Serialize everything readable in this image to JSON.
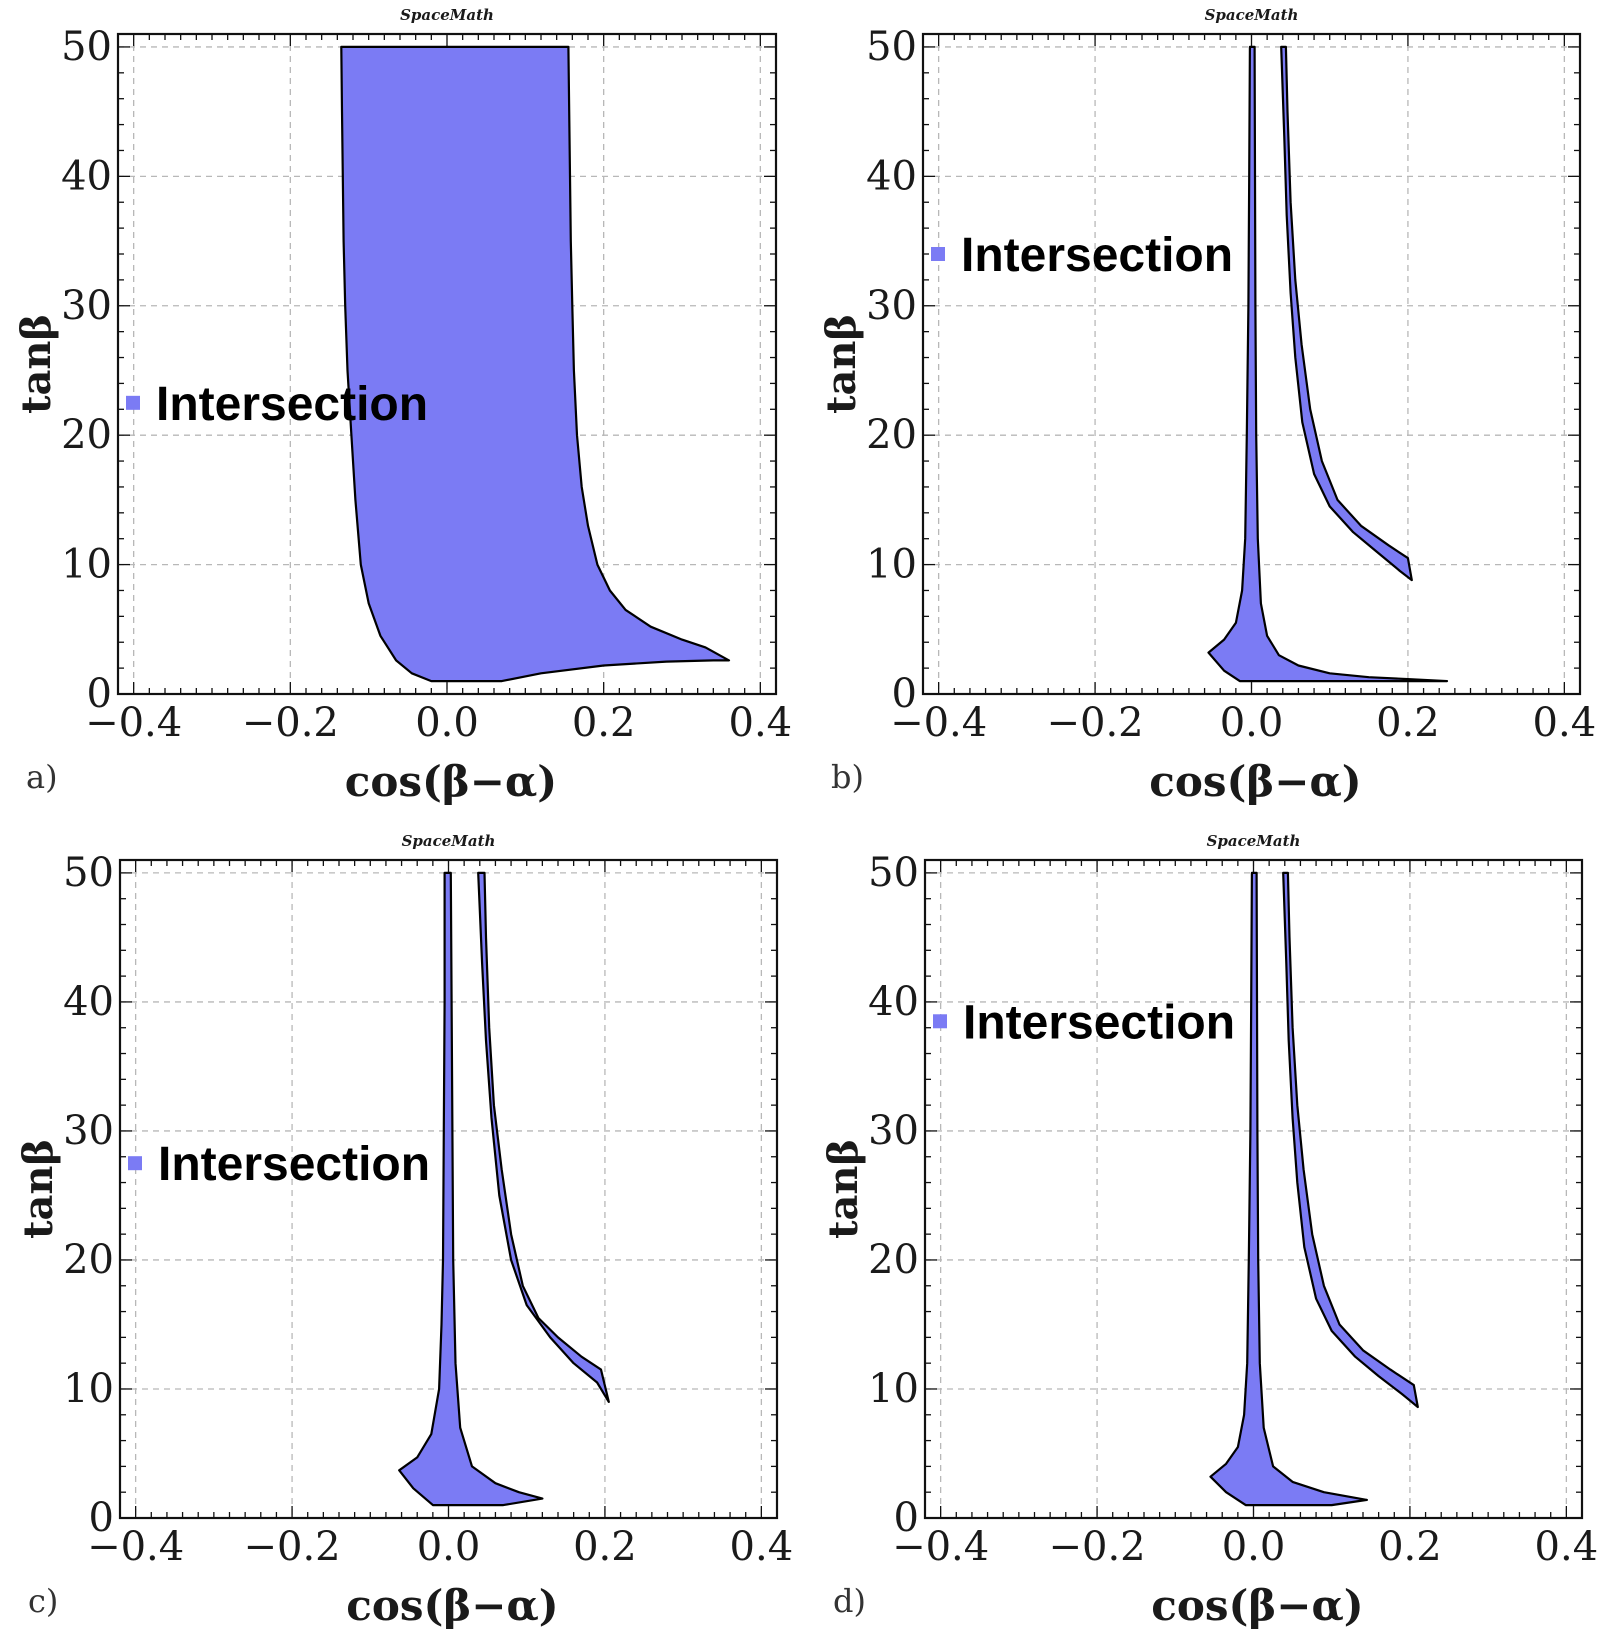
{
  "chart_data": [
    {
      "type": "area",
      "panel_label": "a)",
      "title": "SpaceMath",
      "xlabel": "cos(β−α)",
      "ylabel": "tanβ",
      "xlim": [
        -0.42,
        0.42
      ],
      "ylim": [
        0,
        51
      ],
      "xticks": [
        -0.4,
        -0.2,
        0.0,
        0.2,
        0.4
      ],
      "xtick_labels": [
        "−0.4",
        "−0.2",
        "0.0",
        "0.2",
        "0.4"
      ],
      "yticks": [
        0,
        10,
        20,
        30,
        40,
        50
      ],
      "ytick_labels": [
        "0",
        "10",
        "20",
        "30",
        "40",
        "50"
      ],
      "grid": true,
      "legend": {
        "label": "Intersection",
        "position": "left-middle",
        "y_value": 22.5
      },
      "color": "#7b7bf4",
      "series": [
        {
          "name": "Intersection",
          "polygons": [
            [
              [
                -0.135,
                50
              ],
              [
                0.155,
                50
              ],
              [
                0.156,
                45
              ],
              [
                0.157,
                40
              ],
              [
                0.158,
                35
              ],
              [
                0.16,
                30
              ],
              [
                0.162,
                25
              ],
              [
                0.166,
                20
              ],
              [
                0.172,
                16
              ],
              [
                0.18,
                13
              ],
              [
                0.192,
                10
              ],
              [
                0.208,
                8
              ],
              [
                0.228,
                6.5
              ],
              [
                0.26,
                5.2
              ],
              [
                0.3,
                4.2
              ],
              [
                0.33,
                3.6
              ],
              [
                0.36,
                2.6
              ],
              [
                0.34,
                2.6
              ],
              [
                0.28,
                2.5
              ],
              [
                0.2,
                2.2
              ],
              [
                0.12,
                1.6
              ],
              [
                0.07,
                1.0
              ],
              [
                -0.02,
                1.0
              ],
              [
                -0.045,
                1.6
              ],
              [
                -0.065,
                2.6
              ],
              [
                -0.085,
                4.5
              ],
              [
                -0.1,
                7
              ],
              [
                -0.11,
                10
              ],
              [
                -0.117,
                15
              ],
              [
                -0.122,
                20
              ],
              [
                -0.127,
                25
              ],
              [
                -0.13,
                30
              ],
              [
                -0.132,
                35
              ],
              [
                -0.133,
                40
              ],
              [
                -0.134,
                45
              ],
              [
                -0.135,
                50
              ]
            ]
          ]
        }
      ]
    },
    {
      "type": "area",
      "panel_label": "b)",
      "title": "SpaceMath",
      "xlabel": "cos(β−α)",
      "ylabel": "tanβ",
      "xlim": [
        -0.42,
        0.42
      ],
      "ylim": [
        0,
        51
      ],
      "xticks": [
        -0.4,
        -0.2,
        0.0,
        0.2,
        0.4
      ],
      "xtick_labels": [
        "−0.4",
        "−0.2",
        "0.0",
        "0.2",
        "0.4"
      ],
      "yticks": [
        0,
        10,
        20,
        30,
        40,
        50
      ],
      "ytick_labels": [
        "0",
        "10",
        "20",
        "30",
        "40",
        "50"
      ],
      "grid": true,
      "legend": {
        "label": "Intersection",
        "position": "upper-left",
        "y_value": 34
      },
      "color": "#7b7bf4",
      "series": [
        {
          "name": "Intersection",
          "polygons": [
            [
              [
                -0.002,
                50
              ],
              [
                0.004,
                50
              ],
              [
                0.0045,
                40
              ],
              [
                0.005,
                30
              ],
              [
                0.006,
                20
              ],
              [
                0.008,
                12
              ],
              [
                0.012,
                7
              ],
              [
                0.02,
                4.5
              ],
              [
                0.035,
                3
              ],
              [
                0.06,
                2.2
              ],
              [
                0.1,
                1.6
              ],
              [
                0.15,
                1.3
              ],
              [
                0.2,
                1.15
              ],
              [
                0.25,
                1.0
              ],
              [
                0.2,
                1.0
              ],
              [
                0.1,
                1.0
              ],
              [
                0.03,
                1.0
              ],
              [
                -0.015,
                1.0
              ],
              [
                -0.035,
                1.8
              ],
              [
                -0.055,
                3.2
              ],
              [
                -0.035,
                4.2
              ],
              [
                -0.02,
                5.5
              ],
              [
                -0.012,
                8
              ],
              [
                -0.008,
                12
              ],
              [
                -0.006,
                20
              ],
              [
                -0.004,
                30
              ],
              [
                -0.003,
                40
              ],
              [
                -0.002,
                50
              ]
            ],
            [
              [
                0.038,
                50
              ],
              [
                0.044,
                50
              ],
              [
                0.046,
                45
              ],
              [
                0.05,
                38
              ],
              [
                0.056,
                32
              ],
              [
                0.064,
                27
              ],
              [
                0.075,
                22
              ],
              [
                0.09,
                18
              ],
              [
                0.11,
                15
              ],
              [
                0.14,
                13
              ],
              [
                0.175,
                11.5
              ],
              [
                0.2,
                10.5
              ],
              [
                0.205,
                8.8
              ],
              [
                0.19,
                9.5
              ],
              [
                0.16,
                11
              ],
              [
                0.13,
                12.5
              ],
              [
                0.1,
                14.5
              ],
              [
                0.08,
                17
              ],
              [
                0.065,
                21
              ],
              [
                0.056,
                26
              ],
              [
                0.05,
                31
              ],
              [
                0.045,
                37
              ],
              [
                0.042,
                43
              ],
              [
                0.038,
                50
              ]
            ]
          ]
        }
      ]
    },
    {
      "type": "area",
      "panel_label": "c)",
      "title": "SpaceMath",
      "xlabel": "cos(β−α)",
      "ylabel": "tanβ",
      "xlim": [
        -0.42,
        0.42
      ],
      "ylim": [
        0,
        51
      ],
      "xticks": [
        -0.4,
        -0.2,
        0.0,
        0.2,
        0.4
      ],
      "xtick_labels": [
        "−0.4",
        "−0.2",
        "0.0",
        "0.2",
        "0.4"
      ],
      "yticks": [
        0,
        10,
        20,
        30,
        40,
        50
      ],
      "ytick_labels": [
        "0",
        "10",
        "20",
        "30",
        "40",
        "50"
      ],
      "grid": true,
      "legend": {
        "label": "Intersection",
        "position": "left-middle",
        "y_value": 27.5
      },
      "color": "#7b7bf4",
      "series": [
        {
          "name": "Intersection",
          "polygons": [
            [
              [
                -0.005,
                50
              ],
              [
                0.003,
                50
              ],
              [
                0.004,
                40
              ],
              [
                0.005,
                30
              ],
              [
                0.006,
                20
              ],
              [
                0.009,
                12
              ],
              [
                0.015,
                7
              ],
              [
                0.03,
                4
              ],
              [
                0.06,
                2.7
              ],
              [
                0.09,
                2.0
              ],
              [
                0.12,
                1.5
              ],
              [
                0.07,
                1.0
              ],
              [
                0.03,
                1.0
              ],
              [
                -0.02,
                1.0
              ],
              [
                -0.045,
                2.3
              ],
              [
                -0.063,
                3.7
              ],
              [
                -0.04,
                4.7
              ],
              [
                -0.022,
                6.5
              ],
              [
                -0.012,
                10
              ],
              [
                -0.009,
                15
              ],
              [
                -0.007,
                20
              ],
              [
                -0.006,
                30
              ],
              [
                -0.005,
                40
              ],
              [
                -0.005,
                50
              ]
            ],
            [
              [
                0.038,
                50
              ],
              [
                0.046,
                50
              ],
              [
                0.048,
                45
              ],
              [
                0.052,
                38
              ],
              [
                0.058,
                32
              ],
              [
                0.068,
                27
              ],
              [
                0.08,
                22
              ],
              [
                0.095,
                18
              ],
              [
                0.115,
                15.5
              ],
              [
                0.14,
                14
              ],
              [
                0.17,
                12.5
              ],
              [
                0.195,
                11.5
              ],
              [
                0.205,
                9
              ],
              [
                0.19,
                10.5
              ],
              [
                0.16,
                12
              ],
              [
                0.13,
                14
              ],
              [
                0.1,
                16.5
              ],
              [
                0.08,
                20
              ],
              [
                0.065,
                25
              ],
              [
                0.055,
                31
              ],
              [
                0.048,
                37
              ],
              [
                0.043,
                43
              ],
              [
                0.038,
                50
              ]
            ]
          ]
        }
      ]
    },
    {
      "type": "area",
      "panel_label": "d)",
      "title": "SpaceMath",
      "xlabel": "cos(β−α)",
      "ylabel": "tanβ",
      "xlim": [
        -0.42,
        0.42
      ],
      "ylim": [
        0,
        51
      ],
      "xticks": [
        -0.4,
        -0.2,
        0.0,
        0.2,
        0.4
      ],
      "xtick_labels": [
        "−0.4",
        "−0.2",
        "0.0",
        "0.2",
        "0.4"
      ],
      "yticks": [
        0,
        10,
        20,
        30,
        40,
        50
      ],
      "ytick_labels": [
        "0",
        "10",
        "20",
        "30",
        "40",
        "50"
      ],
      "grid": true,
      "legend": {
        "label": "Intersection",
        "position": "upper-left",
        "y_value": 38.5
      },
      "color": "#7b7bf4",
      "series": [
        {
          "name": "Intersection",
          "polygons": [
            [
              [
                -0.002,
                50
              ],
              [
                0.004,
                50
              ],
              [
                0.0045,
                40
              ],
              [
                0.005,
                30
              ],
              [
                0.006,
                20
              ],
              [
                0.008,
                12
              ],
              [
                0.013,
                7
              ],
              [
                0.025,
                4
              ],
              [
                0.05,
                2.8
              ],
              [
                0.09,
                2.0
              ],
              [
                0.145,
                1.4
              ],
              [
                0.1,
                1.0
              ],
              [
                0.04,
                1.0
              ],
              [
                -0.01,
                1.0
              ],
              [
                -0.035,
                2
              ],
              [
                -0.055,
                3.2
              ],
              [
                -0.035,
                4.2
              ],
              [
                -0.02,
                5.5
              ],
              [
                -0.012,
                8
              ],
              [
                -0.008,
                12
              ],
              [
                -0.006,
                20
              ],
              [
                -0.004,
                30
              ],
              [
                -0.003,
                40
              ],
              [
                -0.002,
                50
              ]
            ],
            [
              [
                0.038,
                50
              ],
              [
                0.044,
                50
              ],
              [
                0.046,
                45
              ],
              [
                0.05,
                38
              ],
              [
                0.056,
                32
              ],
              [
                0.064,
                27
              ],
              [
                0.075,
                22
              ],
              [
                0.09,
                18
              ],
              [
                0.11,
                15
              ],
              [
                0.14,
                13
              ],
              [
                0.175,
                11.5
              ],
              [
                0.205,
                10.3
              ],
              [
                0.21,
                8.6
              ],
              [
                0.19,
                9.6
              ],
              [
                0.16,
                11
              ],
              [
                0.13,
                12.5
              ],
              [
                0.1,
                14.5
              ],
              [
                0.08,
                17
              ],
              [
                0.065,
                21
              ],
              [
                0.056,
                26
              ],
              [
                0.05,
                31
              ],
              [
                0.045,
                37
              ],
              [
                0.042,
                43
              ],
              [
                0.038,
                50
              ]
            ]
          ]
        }
      ]
    }
  ]
}
